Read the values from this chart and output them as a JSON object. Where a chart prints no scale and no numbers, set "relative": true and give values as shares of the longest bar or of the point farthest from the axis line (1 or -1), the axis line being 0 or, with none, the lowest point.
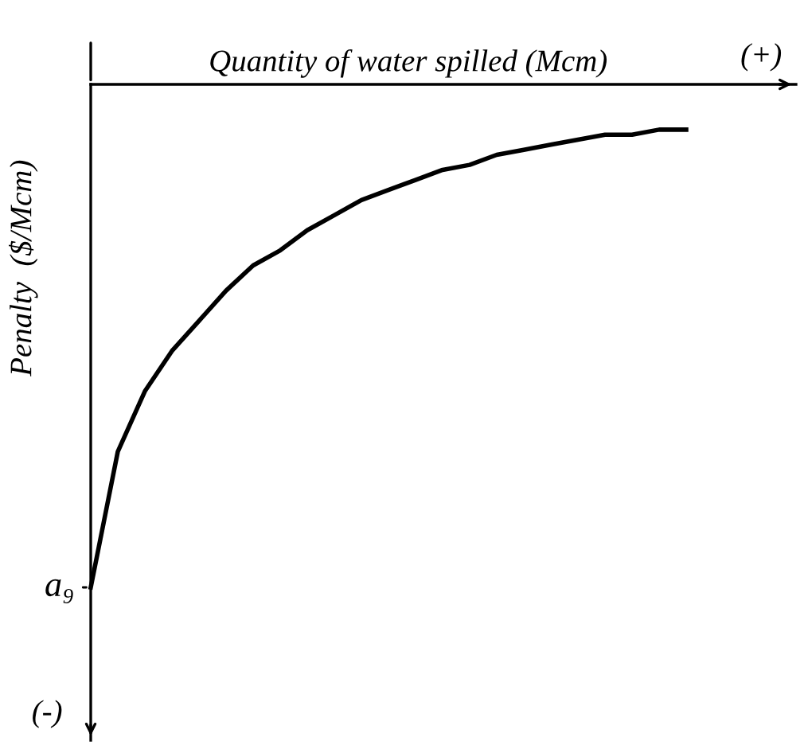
{
  "chart_data": {
    "type": "line",
    "relative": true,
    "xlabel": "Quantity of water spilled (Mcm)",
    "ylabel": "Penalty  ($/Mcm)",
    "categories": [
      null,
      null,
      null,
      null,
      null,
      null,
      null,
      null,
      null,
      null,
      null,
      null,
      null,
      null,
      null,
      null,
      null,
      null,
      null,
      null,
      null,
      null,
      null
    ],
    "series": [
      {
        "color": "#000000",
        "values": [
          -1,
          -0.73,
          -0.61,
          -0.53,
          -0.47,
          -0.41,
          -0.36,
          -0.33,
          -0.29,
          -0.26,
          -0.23,
          -0.21,
          -0.19,
          -0.17,
          -0.16,
          -0.14,
          -0.13,
          -0.12,
          -0.11,
          -0.1,
          -0.1,
          -0.09,
          -0.09
        ]
      }
    ],
    "annotations": [
      "a₉",
      "(+)",
      "(-)"
    ],
    "marker": "none",
    "line_style": "solid"
  }
}
